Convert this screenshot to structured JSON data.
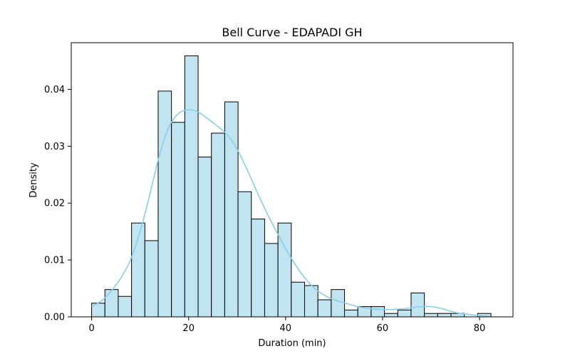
{
  "chart_data": {
    "type": "bar",
    "title": "Bell Curve - EDAPADI GH",
    "xlabel": "Duration (min)",
    "ylabel": "Density",
    "xlim": [
      -4.2,
      86.9
    ],
    "ylim": [
      0,
      0.0482
    ],
    "x_ticks": [
      0,
      20,
      40,
      60,
      80
    ],
    "y_ticks": [
      0.0,
      0.01,
      0.02,
      0.03,
      0.04
    ],
    "y_tick_labels": [
      "0.00",
      "0.01",
      "0.02",
      "0.03",
      "0.04"
    ],
    "grid": false,
    "legend": "none",
    "bar_color": "#c0e4f0",
    "bar_edge_color": "#000000",
    "kde_color": "#87ceeb",
    "bins": {
      "start": 0.0,
      "width": 2.745,
      "densities": [
        0.0024,
        0.0048,
        0.0036,
        0.0165,
        0.0134,
        0.0397,
        0.0342,
        0.0459,
        0.0281,
        0.0323,
        0.0378,
        0.022,
        0.0172,
        0.0129,
        0.0165,
        0.0061,
        0.0055,
        0.003,
        0.0048,
        0.0012,
        0.0018,
        0.0018,
        0.0006,
        0.0012,
        0.0042,
        0.0006,
        0.0006,
        0.0006,
        0.0,
        0.0006
      ]
    },
    "kde": {
      "x": [
        0,
        2,
        4,
        6,
        8,
        10,
        12,
        14,
        16,
        18,
        20,
        22,
        24,
        26,
        28,
        30,
        32,
        34,
        36,
        38,
        40,
        42,
        44,
        46,
        48,
        50,
        52,
        54,
        56,
        58,
        60,
        62,
        64,
        66,
        68,
        70,
        72,
        74,
        76,
        78,
        80,
        82
      ],
      "y": [
        0.0018,
        0.0028,
        0.0045,
        0.0068,
        0.01,
        0.015,
        0.0215,
        0.0285,
        0.0335,
        0.0358,
        0.0364,
        0.036,
        0.0348,
        0.0335,
        0.032,
        0.0295,
        0.026,
        0.0222,
        0.0185,
        0.0152,
        0.012,
        0.0092,
        0.0068,
        0.005,
        0.0038,
        0.003,
        0.0025,
        0.002,
        0.0016,
        0.0014,
        0.0013,
        0.0013,
        0.0014,
        0.0016,
        0.0018,
        0.0018,
        0.0015,
        0.001,
        0.0006,
        0.0004,
        0.0002,
        0.0001
      ]
    }
  }
}
